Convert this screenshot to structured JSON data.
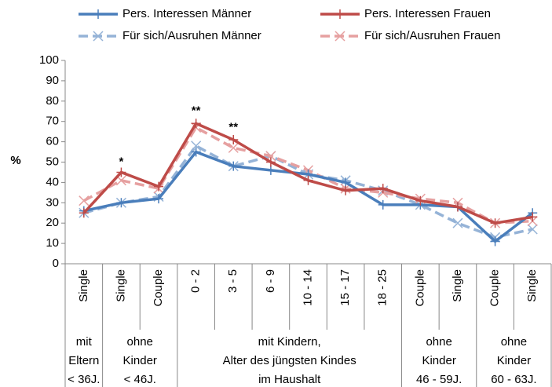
{
  "chart_data": {
    "type": "line",
    "ylabel": "%",
    "groups": [
      {
        "lines": [
          "mit",
          "Eltern",
          "< 36J."
        ],
        "categories": [
          "Single"
        ]
      },
      {
        "lines": [
          "ohne",
          "Kinder",
          "< 46J."
        ],
        "categories": [
          "Single",
          "Couple"
        ]
      },
      {
        "lines": [
          "mit Kindern,",
          "Alter des jüngsten Kindes",
          "im Haushalt"
        ],
        "categories": [
          "0 - 2",
          "3 - 5",
          "6 - 9",
          "10 - 14",
          "15 - 17",
          "18 - 25"
        ]
      },
      {
        "lines": [
          "ohne",
          "Kinder",
          "46 - 59J."
        ],
        "categories": [
          "Couple",
          "Single"
        ]
      },
      {
        "lines": [
          "ohne",
          "Kinder",
          "60 - 63J."
        ],
        "categories": [
          "Couple",
          "Single"
        ]
      }
    ],
    "series": [
      {
        "name": "Pers. Interessen Männer",
        "color": "#4a7ebb",
        "dashed": false,
        "marker": "plus",
        "values": [
          26,
          30,
          32,
          55,
          48,
          46,
          44,
          40,
          29,
          29,
          28,
          11,
          25
        ]
      },
      {
        "name": "Pers. Interessen Frauen",
        "color": "#be4b48",
        "dashed": false,
        "marker": "plus",
        "values": [
          25,
          45,
          38,
          69,
          61,
          50,
          41,
          36,
          37,
          31,
          28,
          20,
          23
        ]
      },
      {
        "name": "Für sich/Ausruhen Männer",
        "color": "#95b3d7",
        "dashed": true,
        "marker": "cross",
        "values": [
          25,
          30,
          33,
          58,
          48,
          53,
          44,
          41,
          36,
          29,
          20,
          13,
          17
        ]
      },
      {
        "name": "Für sich/Ausruhen Frauen",
        "color": "#e6a0a0",
        "dashed": true,
        "marker": "cross",
        "values": [
          31,
          41,
          37,
          67,
          57,
          53,
          46,
          37,
          35,
          32,
          30,
          20,
          21
        ]
      }
    ],
    "annotations": [
      "*",
      "**",
      "**"
    ],
    "ylim": [
      0,
      100
    ],
    "yticks": [
      0,
      10,
      20,
      30,
      40,
      50,
      60,
      70,
      80,
      90,
      100
    ],
    "grid": false
  }
}
